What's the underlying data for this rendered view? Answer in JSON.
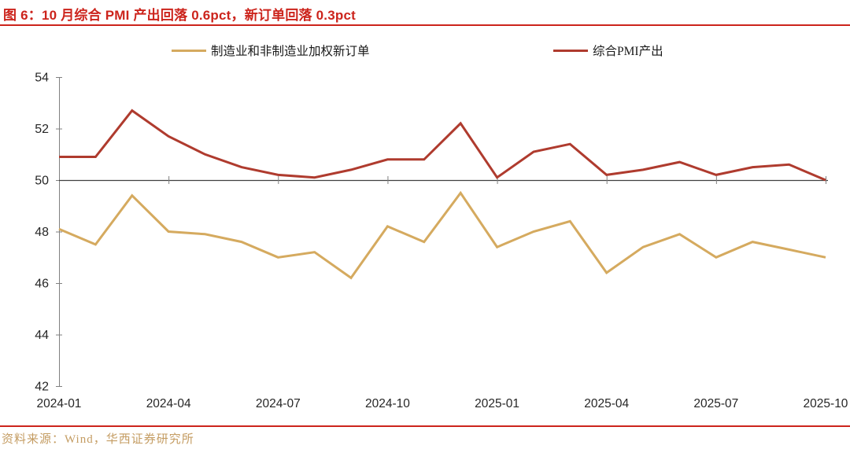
{
  "title": {
    "text": "图 6：10 月综合 PMI 产出回落 0.6pct，新订单回落 0.3pct"
  },
  "source_note": "资料来源：Wind，华西证券研究所",
  "theme": {
    "accent_red": "#CC241C",
    "source_text_gold": "#C49C62",
    "axis_gray": "#808080",
    "baseline_dark": "#404040",
    "label_dark": "#262626"
  },
  "chart_data": {
    "type": "line",
    "title": "图 6：10 月综合 PMI 产出回落 0.6pct，新订单回落 0.3pct",
    "x": [
      "2024-01",
      "2024-02",
      "2024-03",
      "2024-04",
      "2024-05",
      "2024-06",
      "2024-07",
      "2024-08",
      "2024-09",
      "2024-10",
      "2024-11",
      "2024-12",
      "2025-01",
      "2025-02",
      "2025-03",
      "2025-04",
      "2025-05",
      "2025-06",
      "2025-07",
      "2025-08",
      "2025-09",
      "2025-10"
    ],
    "xticks": [
      "2024-01",
      "2024-04",
      "2024-07",
      "2024-10",
      "2025-01",
      "2025-04",
      "2025-07",
      "2025-10"
    ],
    "ylim": [
      42,
      54
    ],
    "yticks": [
      54,
      52,
      50,
      48,
      46,
      44,
      42
    ],
    "baseline": 50,
    "grid": false,
    "legend_position": "top",
    "series": [
      {
        "name": "制造业和非制造业加权新订单",
        "color": "#D5AA5F",
        "values": [
          48.1,
          47.5,
          49.4,
          48.0,
          47.9,
          47.6,
          47.0,
          47.2,
          46.2,
          48.2,
          47.6,
          49.5,
          47.4,
          48.0,
          48.4,
          46.4,
          47.4,
          47.9,
          47.0,
          47.6,
          47.3,
          47.0
        ]
      },
      {
        "name": "综合PMI产出",
        "color": "#AF3B2E",
        "values": [
          50.9,
          50.9,
          52.7,
          51.7,
          51.0,
          50.5,
          50.2,
          50.1,
          50.4,
          50.8,
          50.8,
          52.2,
          50.1,
          51.1,
          51.4,
          50.2,
          50.4,
          50.7,
          50.2,
          50.5,
          50.6,
          50.0
        ]
      }
    ]
  }
}
